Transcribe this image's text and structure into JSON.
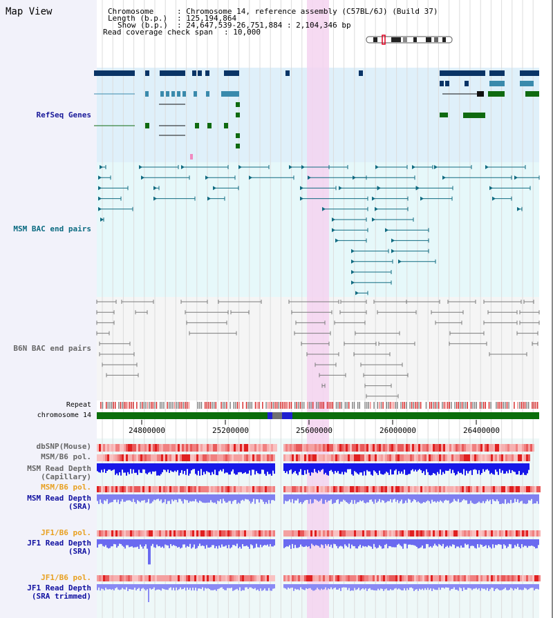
{
  "view": {
    "title": "Map View",
    "chromosome_key": "Chromosome",
    "chromosome_value": ": Chromosome 14, reference assembly (C57BL/6J) (Build 37)",
    "length_key": "Length (b.p.)",
    "length_value": ": 125,194,864",
    "show_key": "Show (b.p.)",
    "show_value": ": 24,647,539-26,751,884 : 2,104,346 bp",
    "coverage_key": "Read coverage check span",
    "coverage_value": ": 10,000"
  },
  "tracks": {
    "refseq": "RefSeq Genes",
    "msm_bac": "MSM BAC end pairs",
    "b6n_bac": "B6N BAC end pairs",
    "repeat": "Repeat",
    "chromosome": "chromosome 14",
    "dbsnp": "dbSNP(Mouse)",
    "msm_pol": "MSM/B6 pol.",
    "msm_depth_cap_1": "MSM Read Depth",
    "msm_depth_cap_2": "(Capillary)",
    "msm_pol_2": "MSM/B6 pol.",
    "msm_depth_sra_1": "MSM Read Depth",
    "msm_depth_sra_2": "(SRA)",
    "jf1_pol": "JF1/B6 pol.",
    "jf1_depth_sra_1": "JF1 Read Depth",
    "jf1_depth_sra_2": "(SRA)",
    "jf1_pol_2": "JF1/B6 pol.",
    "jf1_depth_trim_1": "JF1 Read Depth",
    "jf1_depth_trim_2": "(SRA trimmed)"
  },
  "axis": {
    "ticks": [
      "24800000",
      "25200000",
      "25600000",
      "26000000",
      "26400000"
    ]
  },
  "colors": {
    "refseq_bg": "#dff0fa",
    "msm_bg": "#e6f8fa",
    "b6n_bg": "#f5f5f5",
    "highlight": "#f5d3f0",
    "gene_navy": "#0a3466",
    "gene_teal": "#3a8aac",
    "gene_green": "#0f6a10",
    "msm_line": "#0f6a80",
    "b6n_line": "#7a7a7a",
    "chrom_green": "#0a6e0a",
    "label_navy": "#1a1a9a",
    "label_teal": "#0a6a80",
    "label_gray": "#666666",
    "label_orange": "#e8a020",
    "label_blue": "#1010a0"
  }
}
